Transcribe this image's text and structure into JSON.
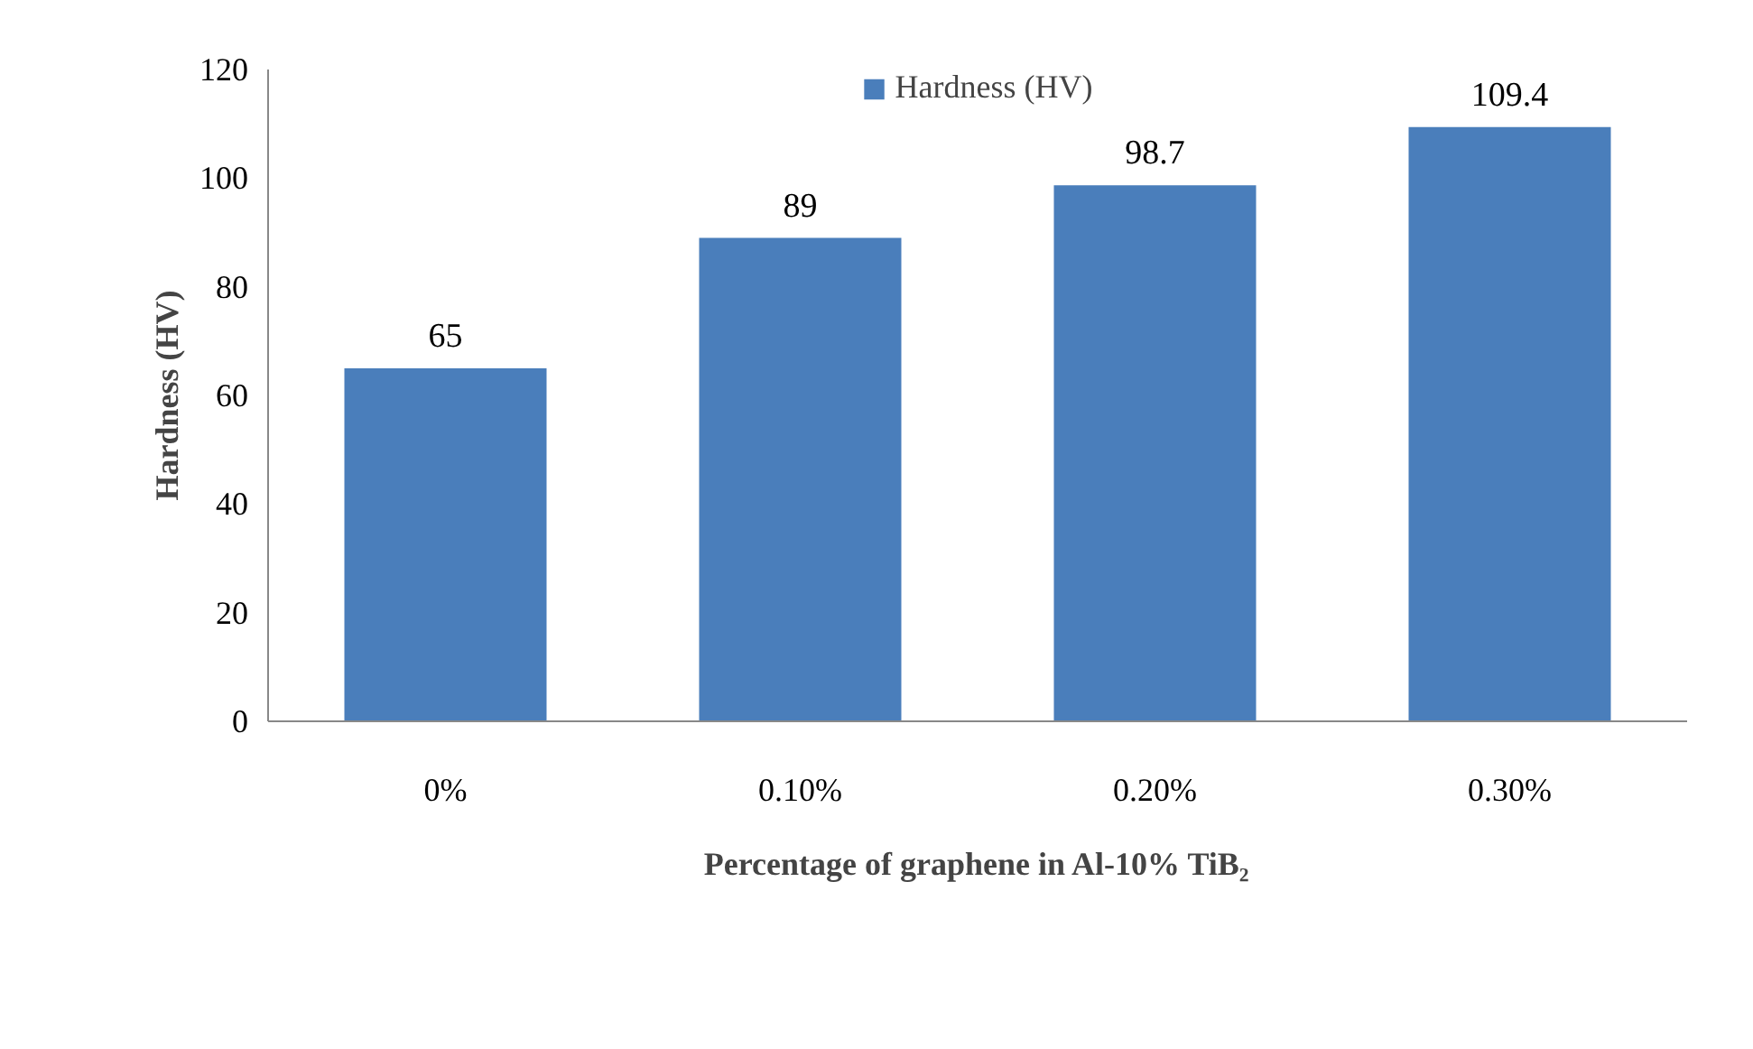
{
  "chart_data": {
    "type": "bar",
    "categories": [
      "0%",
      "0.10%",
      "0.20%",
      "0.30%"
    ],
    "series": [
      {
        "name": "Hardness (HV)",
        "color": "#4a7ebb",
        "values": [
          65,
          89,
          98.7,
          109.4
        ]
      }
    ],
    "ylabel": "Hardness (HV)",
    "xlabel": "Percentage of graphene in Al-10% TiB₂",
    "ylim": [
      0,
      120
    ],
    "yticks": [
      0,
      20,
      40,
      60,
      80,
      100,
      120
    ],
    "data_labels": true,
    "legend": "top",
    "grid": false
  }
}
